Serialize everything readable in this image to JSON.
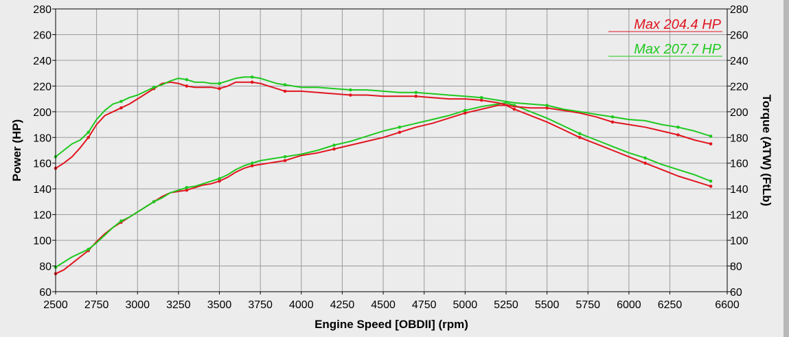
{
  "chart_data": {
    "type": "line",
    "title": "",
    "xlabel": "Engine Speed [OBDII] (rpm)",
    "ylabel": "Power (HP)",
    "y2label": "Torque (ATW) (FtLb)",
    "xlim": [
      2500,
      6600
    ],
    "ylim": [
      60,
      280
    ],
    "y2lim": [
      60,
      280
    ],
    "x_ticks": [
      "2500",
      "2750",
      "3000",
      "3250",
      "3500",
      "3750",
      "4000",
      "4250",
      "4500",
      "4750",
      "5000",
      "5250",
      "5500",
      "5750",
      "6000",
      "6250",
      "6600"
    ],
    "y_ticks": [
      "60",
      "80",
      "100",
      "120",
      "140",
      "160",
      "180",
      "200",
      "220",
      "240",
      "260",
      "280"
    ],
    "y2_ticks": [
      "60",
      "80",
      "100",
      "120",
      "140",
      "160",
      "180",
      "200",
      "220",
      "240",
      "260",
      "280"
    ],
    "grid": true,
    "legend_position": "top-right",
    "legend": [
      {
        "text": "Max 204.4 HP",
        "color": "#e0141e"
      },
      {
        "text": "Max 207.7 HP",
        "color": "#1ec81e"
      }
    ],
    "series": [
      {
        "color": "#e0141e",
        "kind": "power",
        "points": [
          [
            2500,
            74
          ],
          [
            2550,
            77
          ],
          [
            2600,
            82
          ],
          [
            2650,
            87
          ],
          [
            2700,
            92
          ],
          [
            2750,
            99
          ],
          [
            2800,
            105
          ],
          [
            2850,
            110
          ],
          [
            2900,
            114
          ],
          [
            2950,
            118
          ],
          [
            3000,
            122
          ],
          [
            3050,
            126
          ],
          [
            3100,
            130
          ],
          [
            3150,
            134
          ],
          [
            3200,
            137
          ],
          [
            3250,
            138
          ],
          [
            3300,
            139
          ],
          [
            3350,
            141
          ],
          [
            3400,
            143
          ],
          [
            3450,
            144
          ],
          [
            3500,
            146
          ],
          [
            3550,
            149
          ],
          [
            3600,
            153
          ],
          [
            3650,
            156
          ],
          [
            3700,
            158
          ],
          [
            3750,
            159
          ],
          [
            3800,
            160
          ],
          [
            3850,
            161
          ],
          [
            3900,
            162
          ],
          [
            3950,
            164
          ],
          [
            4000,
            166
          ],
          [
            4100,
            168
          ],
          [
            4200,
            171
          ],
          [
            4300,
            174
          ],
          [
            4400,
            177
          ],
          [
            4500,
            180
          ],
          [
            4600,
            184
          ],
          [
            4700,
            188
          ],
          [
            4800,
            191
          ],
          [
            4900,
            195
          ],
          [
            5000,
            199
          ],
          [
            5100,
            202
          ],
          [
            5200,
            205
          ],
          [
            5250,
            205
          ],
          [
            5300,
            202
          ],
          [
            5400,
            197
          ],
          [
            5500,
            192
          ],
          [
            5600,
            186
          ],
          [
            5700,
            180
          ],
          [
            5800,
            175
          ],
          [
            5900,
            170
          ],
          [
            6000,
            165
          ],
          [
            6100,
            160
          ],
          [
            6200,
            155
          ],
          [
            6300,
            150
          ],
          [
            6400,
            146
          ],
          [
            6500,
            142
          ]
        ]
      },
      {
        "color": "#1ec81e",
        "kind": "power",
        "points": [
          [
            2500,
            79
          ],
          [
            2550,
            83
          ],
          [
            2600,
            87
          ],
          [
            2650,
            90
          ],
          [
            2700,
            93
          ],
          [
            2750,
            98
          ],
          [
            2800,
            104
          ],
          [
            2850,
            110
          ],
          [
            2900,
            115
          ],
          [
            2950,
            118
          ],
          [
            3000,
            122
          ],
          [
            3050,
            126
          ],
          [
            3100,
            130
          ],
          [
            3150,
            133
          ],
          [
            3200,
            137
          ],
          [
            3250,
            139
          ],
          [
            3300,
            141
          ],
          [
            3350,
            142
          ],
          [
            3400,
            144
          ],
          [
            3450,
            146
          ],
          [
            3500,
            148
          ],
          [
            3550,
            151
          ],
          [
            3600,
            155
          ],
          [
            3650,
            158
          ],
          [
            3700,
            160
          ],
          [
            3750,
            162
          ],
          [
            3800,
            163
          ],
          [
            3850,
            164
          ],
          [
            3900,
            165
          ],
          [
            3950,
            166
          ],
          [
            4000,
            167
          ],
          [
            4100,
            170
          ],
          [
            4200,
            174
          ],
          [
            4300,
            177
          ],
          [
            4400,
            181
          ],
          [
            4500,
            185
          ],
          [
            4600,
            188
          ],
          [
            4700,
            191
          ],
          [
            4800,
            194
          ],
          [
            4900,
            197
          ],
          [
            5000,
            201
          ],
          [
            5100,
            204
          ],
          [
            5200,
            206
          ],
          [
            5250,
            207
          ],
          [
            5300,
            205
          ],
          [
            5400,
            200
          ],
          [
            5500,
            195
          ],
          [
            5600,
            189
          ],
          [
            5700,
            183
          ],
          [
            5800,
            178
          ],
          [
            5900,
            173
          ],
          [
            6000,
            168
          ],
          [
            6100,
            164
          ],
          [
            6200,
            159
          ],
          [
            6300,
            155
          ],
          [
            6400,
            151
          ],
          [
            6500,
            146
          ]
        ]
      },
      {
        "color": "#e0141e",
        "kind": "torque",
        "points": [
          [
            2500,
            156
          ],
          [
            2550,
            160
          ],
          [
            2600,
            165
          ],
          [
            2650,
            172
          ],
          [
            2700,
            180
          ],
          [
            2750,
            190
          ],
          [
            2800,
            197
          ],
          [
            2850,
            200
          ],
          [
            2900,
            203
          ],
          [
            2950,
            206
          ],
          [
            3000,
            210
          ],
          [
            3050,
            214
          ],
          [
            3100,
            218
          ],
          [
            3150,
            222
          ],
          [
            3200,
            223
          ],
          [
            3250,
            222
          ],
          [
            3300,
            220
          ],
          [
            3350,
            219
          ],
          [
            3400,
            219
          ],
          [
            3450,
            219
          ],
          [
            3500,
            218
          ],
          [
            3550,
            220
          ],
          [
            3600,
            223
          ],
          [
            3650,
            223
          ],
          [
            3700,
            223
          ],
          [
            3750,
            222
          ],
          [
            3800,
            220
          ],
          [
            3850,
            218
          ],
          [
            3900,
            216
          ],
          [
            4000,
            216
          ],
          [
            4100,
            215
          ],
          [
            4200,
            214
          ],
          [
            4300,
            213
          ],
          [
            4400,
            213
          ],
          [
            4500,
            212
          ],
          [
            4600,
            212
          ],
          [
            4700,
            212
          ],
          [
            4800,
            211
          ],
          [
            4900,
            210
          ],
          [
            5000,
            210
          ],
          [
            5100,
            209
          ],
          [
            5200,
            207
          ],
          [
            5300,
            204
          ],
          [
            5400,
            203
          ],
          [
            5500,
            203
          ],
          [
            5600,
            201
          ],
          [
            5700,
            199
          ],
          [
            5800,
            196
          ],
          [
            5900,
            192
          ],
          [
            6000,
            190
          ],
          [
            6100,
            188
          ],
          [
            6200,
            185
          ],
          [
            6300,
            182
          ],
          [
            6400,
            178
          ],
          [
            6500,
            175
          ]
        ]
      },
      {
        "color": "#1ec81e",
        "kind": "torque",
        "points": [
          [
            2500,
            165
          ],
          [
            2550,
            170
          ],
          [
            2600,
            175
          ],
          [
            2650,
            178
          ],
          [
            2700,
            184
          ],
          [
            2750,
            194
          ],
          [
            2800,
            201
          ],
          [
            2850,
            206
          ],
          [
            2900,
            208
          ],
          [
            2950,
            211
          ],
          [
            3000,
            213
          ],
          [
            3050,
            216
          ],
          [
            3100,
            219
          ],
          [
            3150,
            221
          ],
          [
            3200,
            224
          ],
          [
            3250,
            226
          ],
          [
            3300,
            225
          ],
          [
            3350,
            223
          ],
          [
            3400,
            223
          ],
          [
            3450,
            222
          ],
          [
            3500,
            222
          ],
          [
            3550,
            224
          ],
          [
            3600,
            226
          ],
          [
            3650,
            227
          ],
          [
            3700,
            227
          ],
          [
            3750,
            226
          ],
          [
            3800,
            224
          ],
          [
            3850,
            222
          ],
          [
            3900,
            221
          ],
          [
            4000,
            219
          ],
          [
            4100,
            219
          ],
          [
            4200,
            218
          ],
          [
            4300,
            217
          ],
          [
            4400,
            217
          ],
          [
            4500,
            216
          ],
          [
            4600,
            215
          ],
          [
            4700,
            215
          ],
          [
            4800,
            214
          ],
          [
            4900,
            213
          ],
          [
            5000,
            212
          ],
          [
            5100,
            211
          ],
          [
            5200,
            209
          ],
          [
            5300,
            207
          ],
          [
            5400,
            206
          ],
          [
            5500,
            205
          ],
          [
            5600,
            202
          ],
          [
            5700,
            200
          ],
          [
            5800,
            198
          ],
          [
            5900,
            196
          ],
          [
            6000,
            194
          ],
          [
            6100,
            193
          ],
          [
            6200,
            190
          ],
          [
            6300,
            188
          ],
          [
            6400,
            185
          ],
          [
            6500,
            181
          ]
        ]
      }
    ]
  }
}
